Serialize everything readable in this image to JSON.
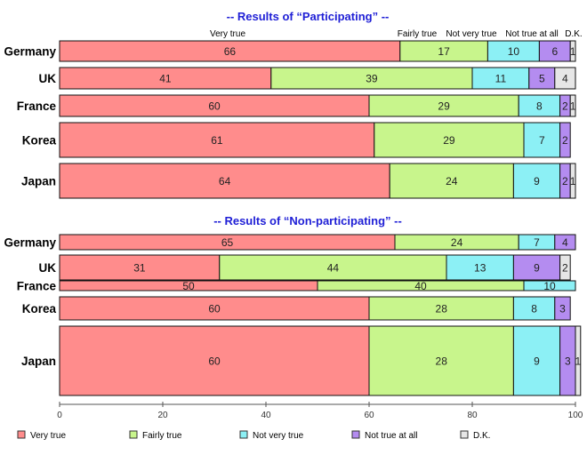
{
  "chart_data": {
    "type": "bar",
    "orientation": "horizontal",
    "stacked": true,
    "xlim": [
      0,
      100
    ],
    "x_ticks": [
      "0",
      "20",
      "40",
      "60",
      "80",
      "100"
    ],
    "legend_position": "bottom",
    "series": [
      {
        "name": "Very true",
        "color": "#ff8c8c"
      },
      {
        "name": "Fairly true",
        "color": "#c8f58c"
      },
      {
        "name": "Not very true",
        "color": "#8cf0f5"
      },
      {
        "name": "Not true at all",
        "color": "#b48cf0"
      },
      {
        "name": "D.K.",
        "color": "#e6e6e6"
      }
    ],
    "column_headers": [
      "Very true",
      "Fairly true",
      "Not very true",
      "Not true at all",
      "D.K."
    ],
    "panels": [
      {
        "title": "-- Results of “Participating” --",
        "categories": [
          "Germany",
          "UK",
          "France",
          "Korea",
          "Japan"
        ],
        "values": [
          [
            66,
            17,
            10,
            6,
            1
          ],
          [
            41,
            39,
            11,
            5,
            4
          ],
          [
            60,
            29,
            8,
            2,
            1
          ],
          [
            61,
            29,
            7,
            2,
            0
          ],
          [
            64,
            24,
            9,
            2,
            1
          ]
        ],
        "labels": [
          [
            "66",
            "17",
            "10",
            "6",
            "1"
          ],
          [
            "41",
            "39",
            "11",
            "5",
            "4"
          ],
          [
            "60",
            "29",
            "8",
            "2",
            "1"
          ],
          [
            "61",
            "29",
            "7",
            "2",
            ""
          ],
          [
            "64",
            "24",
            "9",
            "2",
            "1"
          ]
        ]
      },
      {
        "title": "-- Results of “Non-participating” --",
        "categories": [
          "Germany",
          "UK",
          "France",
          "Korea",
          "Japan"
        ],
        "values": [
          [
            65,
            24,
            7,
            4,
            0
          ],
          [
            31,
            44,
            13,
            9,
            2
          ],
          [
            50,
            40,
            10,
            0,
            0
          ],
          [
            60,
            28,
            8,
            3,
            0
          ],
          [
            60,
            28,
            9,
            3,
            1
          ]
        ],
        "labels": [
          [
            "65",
            "24",
            "7",
            "4",
            ""
          ],
          [
            "31",
            "44",
            "13",
            "9",
            "2"
          ],
          [
            "50",
            "40",
            "10",
            "",
            ""
          ],
          [
            "60",
            "28",
            "8",
            "3",
            ""
          ],
          [
            "60",
            "28",
            "9",
            "3",
            "1"
          ]
        ]
      }
    ]
  }
}
